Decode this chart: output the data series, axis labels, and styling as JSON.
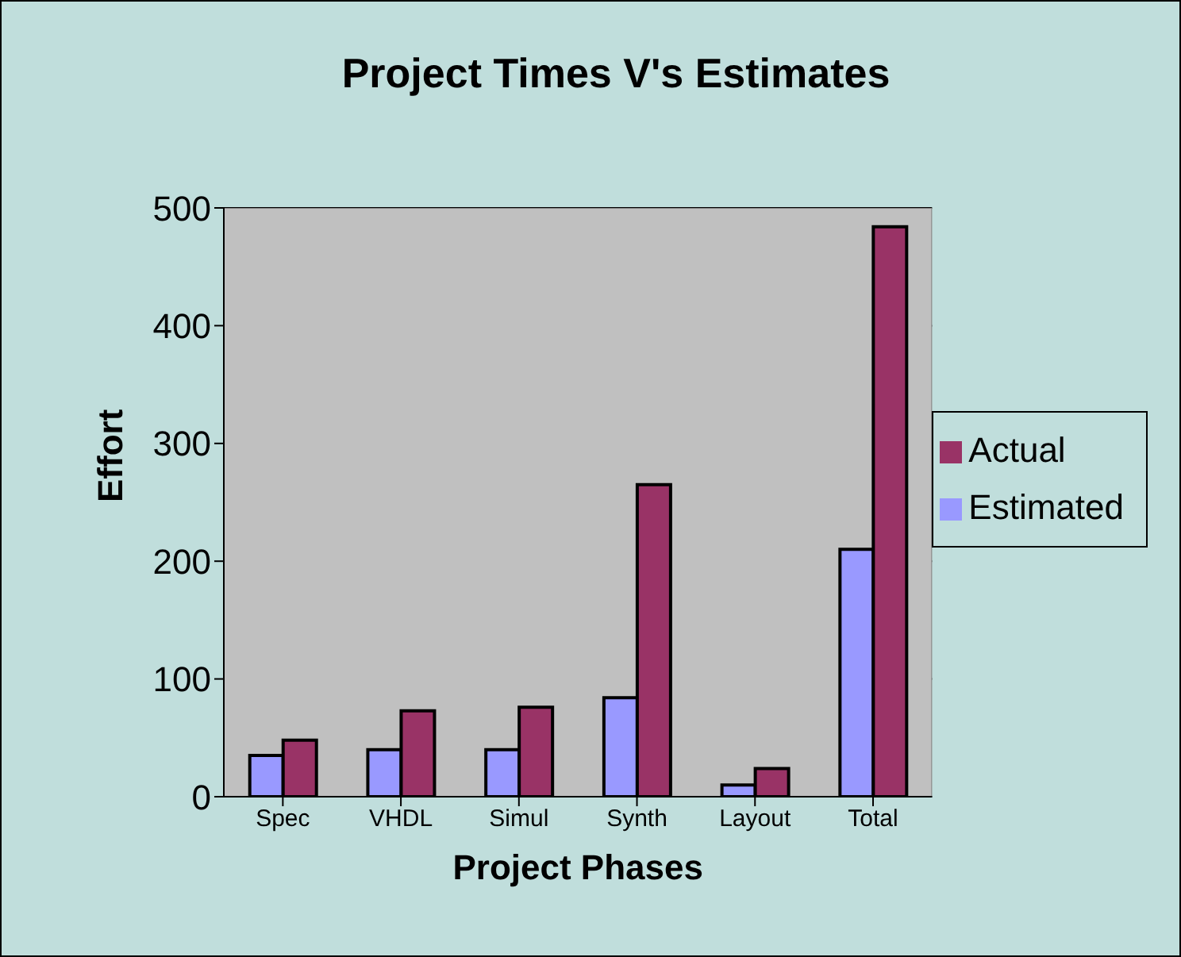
{
  "chart_data": {
    "type": "bar",
    "title": "Project Times V's Estimates",
    "xlabel": "Project Phases",
    "ylabel": "Effort",
    "categories": [
      "Spec",
      "VHDL",
      "Simul",
      "Synth",
      "Layout",
      "Total"
    ],
    "series": [
      {
        "name": "Estimated",
        "color": "#9999ff",
        "values": [
          35,
          40,
          40,
          84,
          10,
          210
        ]
      },
      {
        "name": "Actual",
        "color": "#993366",
        "values": [
          48,
          73,
          76,
          265,
          24,
          484
        ]
      }
    ],
    "ylim": [
      0,
      500
    ],
    "yticks": [
      0,
      100,
      200,
      300,
      400,
      500
    ],
    "grid": "y",
    "legend": "right"
  }
}
